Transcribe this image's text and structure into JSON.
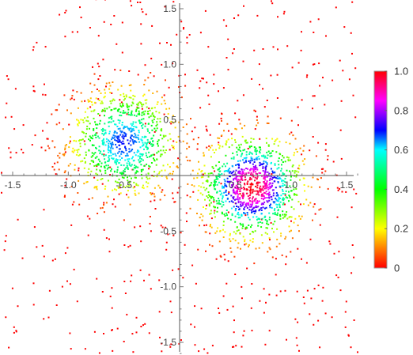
{
  "chart_data": {
    "type": "scatter",
    "title": "",
    "xlabel": "",
    "ylabel": "",
    "xlim": [
      -1.6,
      1.6
    ],
    "ylim": [
      -1.6,
      1.6
    ],
    "x_ticks": [
      -1.5,
      -1.0,
      -0.5,
      0.5,
      1.0,
      1.5
    ],
    "x_tick_labels": [
      "-1.5",
      "-1.0",
      "-0.5",
      "0.5",
      "1.0",
      "1.5"
    ],
    "y_ticks": [
      -1.5,
      -1.0,
      -0.5,
      0.5,
      1.0,
      1.5
    ],
    "y_tick_labels": [
      "-1.5",
      "-1.0",
      "-0.5",
      "0.5",
      "1.0",
      "1.5"
    ],
    "grid": false,
    "background_points": {
      "value": 0.0,
      "count": 520,
      "distribution": "uniform over plot range"
    },
    "clusters": [
      {
        "center": [
          -0.5,
          0.3
        ],
        "spread": 0.3,
        "count": 900,
        "peak_value": 0.7
      },
      {
        "center": [
          0.65,
          -0.1
        ],
        "spread": 0.28,
        "count": 1100,
        "peak_value": 1.0
      }
    ],
    "colorbar": {
      "min": 0.0,
      "max": 1.0,
      "position": "right",
      "ticks": [
        0.0,
        0.2,
        0.4,
        0.6,
        0.8,
        1.0
      ],
      "tick_labels": [
        "0",
        "0.2",
        "0.4",
        "0.6",
        "0.8",
        "1.0"
      ],
      "colors": [
        "#ff0000",
        "#ffff00",
        "#00ff00",
        "#00ffff",
        "#0000ff",
        "#ff00ff",
        "#ff0000"
      ]
    }
  }
}
